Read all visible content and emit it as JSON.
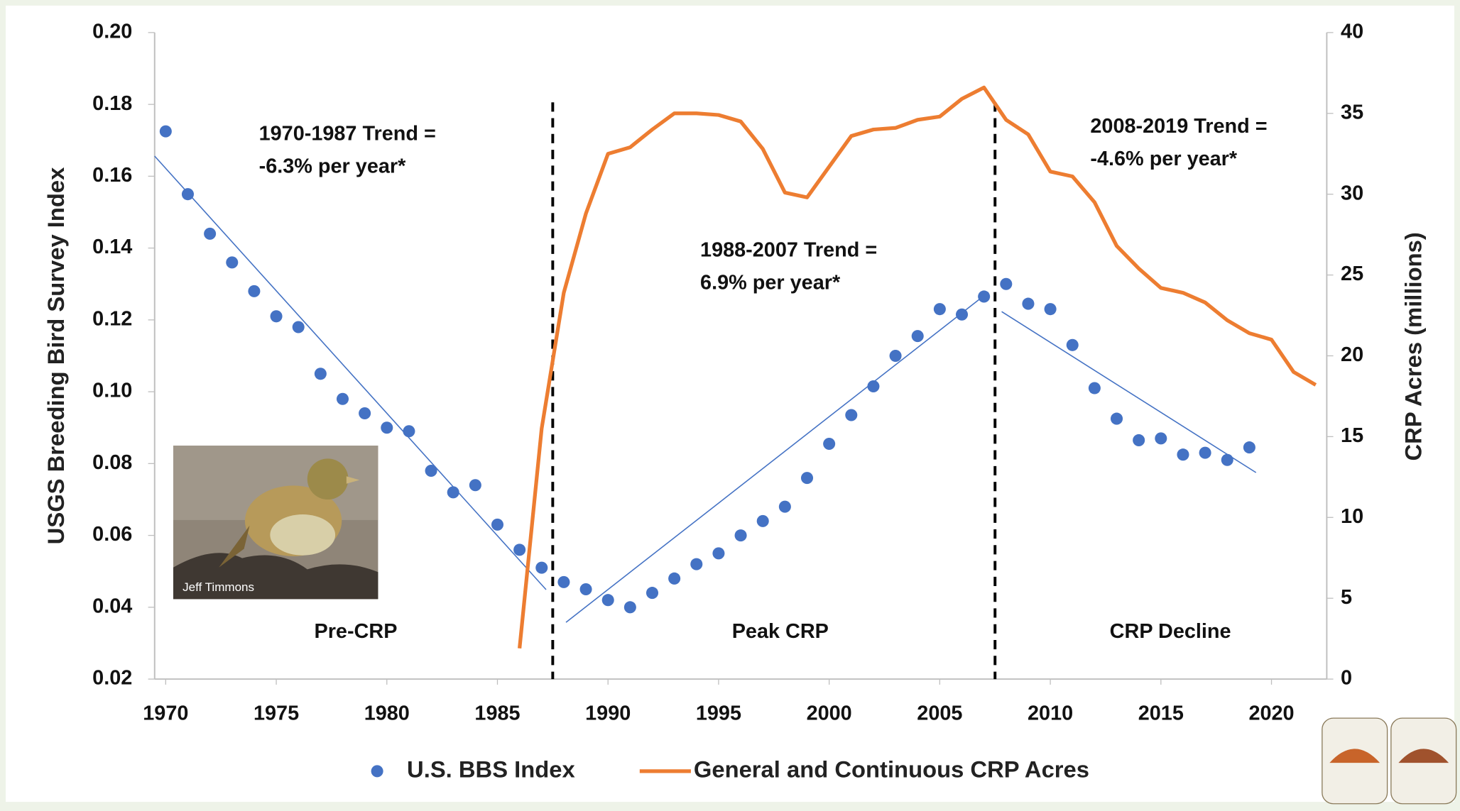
{
  "chart_data": {
    "type": "combo",
    "y_label": "USGS Breeding Bird Survey Index",
    "y2_label": "CRP Acres (millions)",
    "xlim": [
      1969.5,
      2022.5
    ],
    "xticks": [
      1970,
      1975,
      1980,
      1985,
      1990,
      1995,
      2000,
      2005,
      2010,
      2015,
      2020
    ],
    "ylim": [
      0.02,
      0.2
    ],
    "yticks": [
      0.02,
      0.04,
      0.06,
      0.08,
      {
        "value": 0.1,
        "label": "0.10"
      },
      0.12,
      0.14,
      0.16,
      0.18,
      {
        "value": 0.2,
        "label": "0.20"
      }
    ],
    "y2lim": [
      0,
      40
    ],
    "y2ticks": [
      0,
      5,
      10,
      15,
      20,
      25,
      30,
      35,
      40
    ],
    "grid": false,
    "legend": "bottom",
    "series": [
      {
        "name": "U.S. BBS Index",
        "kind": "scatter",
        "color": "#4472c4",
        "x": [
          1970,
          1971,
          1972,
          1973,
          1974,
          1975,
          1976,
          1977,
          1978,
          1979,
          1980,
          1981,
          1982,
          1983,
          1984,
          1985,
          1986,
          1987,
          1988,
          1989,
          1990,
          1991,
          1992,
          1993,
          1994,
          1995,
          1996,
          1997,
          1998,
          1999,
          2000,
          2001,
          2002,
          2003,
          2004,
          2005,
          2006,
          2007,
          2008,
          2009,
          2010,
          2011,
          2012,
          2013,
          2014,
          2015,
          2016,
          2017,
          2018,
          2019
        ],
        "values": [
          0.1725,
          0.155,
          0.144,
          0.136,
          0.128,
          0.121,
          0.118,
          0.105,
          0.098,
          0.094,
          0.09,
          0.089,
          0.078,
          0.072,
          0.074,
          0.063,
          0.056,
          0.051,
          0.047,
          0.045,
          0.042,
          0.04,
          0.044,
          0.048,
          0.052,
          0.055,
          0.06,
          0.064,
          0.068,
          0.076,
          0.0855,
          0.0935,
          0.1015,
          0.11,
          0.1155,
          0.123,
          0.1215,
          0.1265,
          0.13,
          0.1245,
          0.123,
          0.113,
          0.101,
          0.0925,
          0.0865,
          0.087,
          0.0825,
          0.083,
          0.081,
          0.0845
        ]
      },
      {
        "name": "General and Continuous CRP Acres",
        "kind": "line",
        "axis": "y2",
        "color": "#ed7d31",
        "x": [
          1986,
          1987,
          1988,
          1989,
          1990,
          1991,
          1992,
          1993,
          1994,
          1995,
          1996,
          1997,
          1998,
          1999,
          2000,
          2001,
          2002,
          2003,
          2004,
          2005,
          2006,
          2007,
          2008,
          2009,
          2010,
          2011,
          2012,
          2013,
          2014,
          2015,
          2016,
          2017,
          2018,
          2019,
          2020,
          2021,
          2022
        ],
        "values": [
          1.9,
          15.5,
          23.9,
          28.8,
          32.5,
          32.9,
          34,
          35,
          35,
          34.9,
          34.5,
          32.8,
          30.1,
          29.8,
          31.7,
          33.6,
          34,
          34.1,
          34.6,
          34.8,
          35.9,
          36.6,
          34.6,
          33.7,
          31.4,
          31.1,
          29.5,
          26.8,
          25.4,
          24.2,
          23.9,
          23.3,
          22.2,
          21.4,
          21,
          19,
          18.2
        ]
      }
    ],
    "trend_lines": [
      {
        "color": "#4472c4",
        "x": [
          1969.5,
          1987.2
        ],
        "values": [
          0.1656,
          0.0449
        ]
      },
      {
        "color": "#4472c4",
        "x": [
          1988.1,
          2007.2
        ],
        "values": [
          0.0358,
          0.1277
        ]
      },
      {
        "color": "#4472c4",
        "x": [
          2007.8,
          2019.3
        ],
        "values": [
          0.1223,
          0.0775
        ]
      }
    ],
    "dividers": [
      1987.5,
      2007.5
    ],
    "annotations": [
      {
        "lines": [
          "1970-1987 Trend =",
          "-6.3% per year*"
        ]
      },
      {
        "lines": [
          "1988-2007 Trend =",
          "6.9% per year*"
        ]
      },
      {
        "lines": [
          "2008-2019 Trend =",
          "-4.6% per year*"
        ]
      }
    ],
    "periods": [
      "Pre-CRP",
      "Peak CRP",
      "CRP Decline"
    ]
  },
  "photo": {
    "caption": "Jeff Timmons"
  }
}
